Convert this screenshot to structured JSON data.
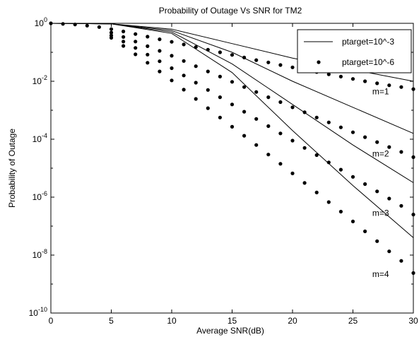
{
  "chart_data": {
    "type": "line",
    "title": "Probability of Outage Vs SNR for TM2",
    "xlabel": "Average SNR(dB)",
    "ylabel": "Probability of Outage",
    "xlim": [
      0,
      30
    ],
    "ylim_log10": [
      -10,
      0
    ],
    "yscale": "log",
    "grid": false,
    "legend_position": "top-right",
    "x_ticks": [
      0,
      5,
      10,
      15,
      20,
      25,
      30
    ],
    "x_tick_labels": [
      "0",
      "5",
      "10",
      "15",
      "20",
      "25",
      "30"
    ],
    "y_ticks_log10": [
      0,
      -2,
      -4,
      -6,
      -8,
      -10
    ],
    "y_tick_labels": [
      {
        "base": "10",
        "exp": "0"
      },
      {
        "base": "10",
        "exp": "-2"
      },
      {
        "base": "10",
        "exp": "-4"
      },
      {
        "base": "10",
        "exp": "-6"
      },
      {
        "base": "10",
        "exp": "-8"
      },
      {
        "base": "10",
        "exp": "-10"
      }
    ],
    "legend": [
      {
        "label": "ptarget=10^-3",
        "style": "line"
      },
      {
        "label": "ptarget=10^-6",
        "style": "dots"
      }
    ],
    "series_style": {
      "line": {
        "color": "#000000"
      },
      "dots": {
        "color": "#000000"
      }
    },
    "series": [
      {
        "group": "ptarget=10^-3",
        "m": 1,
        "x": [
          0,
          5,
          10,
          15,
          20,
          25,
          30
        ],
        "log10_y": [
          0,
          -0.02,
          -0.2,
          -0.7,
          -1.2,
          -1.6,
          -2.0
        ]
      },
      {
        "group": "ptarget=10^-3",
        "m": 2,
        "x": [
          0,
          5,
          10,
          15,
          20,
          25,
          30
        ],
        "log10_y": [
          0,
          -0.02,
          -0.25,
          -1.0,
          -2.0,
          -2.9,
          -3.8
        ]
      },
      {
        "group": "ptarget=10^-3",
        "m": 3,
        "x": [
          0,
          5,
          10,
          15,
          20,
          25,
          30
        ],
        "log10_y": [
          0,
          -0.02,
          -0.3,
          -1.4,
          -2.8,
          -4.2,
          -5.5
        ]
      },
      {
        "group": "ptarget=10^-3",
        "m": 4,
        "x": [
          0,
          5,
          10,
          15,
          20,
          25,
          30
        ],
        "log10_y": [
          0,
          -0.02,
          -0.35,
          -1.7,
          -3.7,
          -5.6,
          -7.4
        ]
      },
      {
        "group": "ptarget=10^-6",
        "m": 1,
        "x": [
          0,
          1,
          2,
          3,
          4,
          5,
          6,
          7,
          8,
          9,
          10,
          11,
          12,
          13,
          14,
          15,
          16,
          17,
          18,
          19,
          20,
          21,
          22,
          23,
          24,
          25,
          26,
          27,
          28,
          29,
          30
        ],
        "log10_y": [
          0,
          -0.02,
          -0.04,
          -0.08,
          -0.13,
          -0.2,
          -0.28,
          -0.37,
          -0.46,
          -0.55,
          -0.64,
          -0.73,
          -0.82,
          -0.91,
          -1.0,
          -1.09,
          -1.18,
          -1.27,
          -1.35,
          -1.44,
          -1.52,
          -1.6,
          -1.68,
          -1.76,
          -1.84,
          -1.92,
          -2.0,
          -2.07,
          -2.14,
          -2.2,
          -2.27
        ]
      },
      {
        "group": "ptarget=10^-6",
        "m": 2,
        "x": [
          5,
          6,
          7,
          8,
          9,
          10,
          11,
          12,
          13,
          14,
          15,
          16,
          17,
          18,
          19,
          20,
          21,
          22,
          23,
          24,
          25,
          26,
          27,
          28,
          29,
          30
        ],
        "log10_y": [
          -0.32,
          -0.47,
          -0.63,
          -0.79,
          -0.95,
          -1.12,
          -1.3,
          -1.48,
          -1.66,
          -1.84,
          -2.02,
          -2.2,
          -2.37,
          -2.55,
          -2.72,
          -2.9,
          -3.07,
          -3.25,
          -3.42,
          -3.59,
          -3.76,
          -3.93,
          -4.1,
          -4.27,
          -4.44,
          -4.62
        ]
      },
      {
        "group": "ptarget=10^-6",
        "m": 3,
        "x": [
          5,
          6,
          7,
          8,
          9,
          10,
          11,
          12,
          13,
          14,
          15,
          16,
          17,
          18,
          19,
          20,
          21,
          22,
          23,
          24,
          25,
          26,
          27,
          28,
          29,
          30
        ],
        "log10_y": [
          -0.42,
          -0.63,
          -0.85,
          -1.08,
          -1.31,
          -1.55,
          -1.8,
          -2.05,
          -2.3,
          -2.55,
          -2.8,
          -3.05,
          -3.3,
          -3.55,
          -3.8,
          -4.05,
          -4.3,
          -4.55,
          -4.8,
          -5.05,
          -5.3,
          -5.55,
          -5.8,
          -6.05,
          -6.3,
          -6.6
        ]
      },
      {
        "group": "ptarget=10^-6",
        "m": 4,
        "x": [
          5,
          6,
          7,
          8,
          9,
          10,
          11,
          12,
          13,
          14,
          15,
          16,
          17,
          18,
          19,
          20,
          21,
          22,
          23,
          24,
          25,
          26,
          27,
          28,
          29,
          30
        ],
        "log10_y": [
          -0.5,
          -0.78,
          -1.07,
          -1.36,
          -1.66,
          -1.97,
          -2.29,
          -2.61,
          -2.93,
          -3.25,
          -3.57,
          -3.88,
          -4.2,
          -4.53,
          -4.85,
          -5.18,
          -5.51,
          -5.84,
          -6.17,
          -6.5,
          -6.84,
          -7.18,
          -7.52,
          -7.87,
          -8.2,
          -8.62
        ]
      }
    ],
    "annotations": [
      {
        "text": "m=1",
        "x": 26.6,
        "log10_y": -2.45
      },
      {
        "text": "m=2",
        "x": 26.6,
        "log10_y": -4.6
      },
      {
        "text": "m=3",
        "x": 26.6,
        "log10_y": -6.65
      },
      {
        "text": "m=4",
        "x": 26.6,
        "log10_y": -8.75
      }
    ]
  }
}
